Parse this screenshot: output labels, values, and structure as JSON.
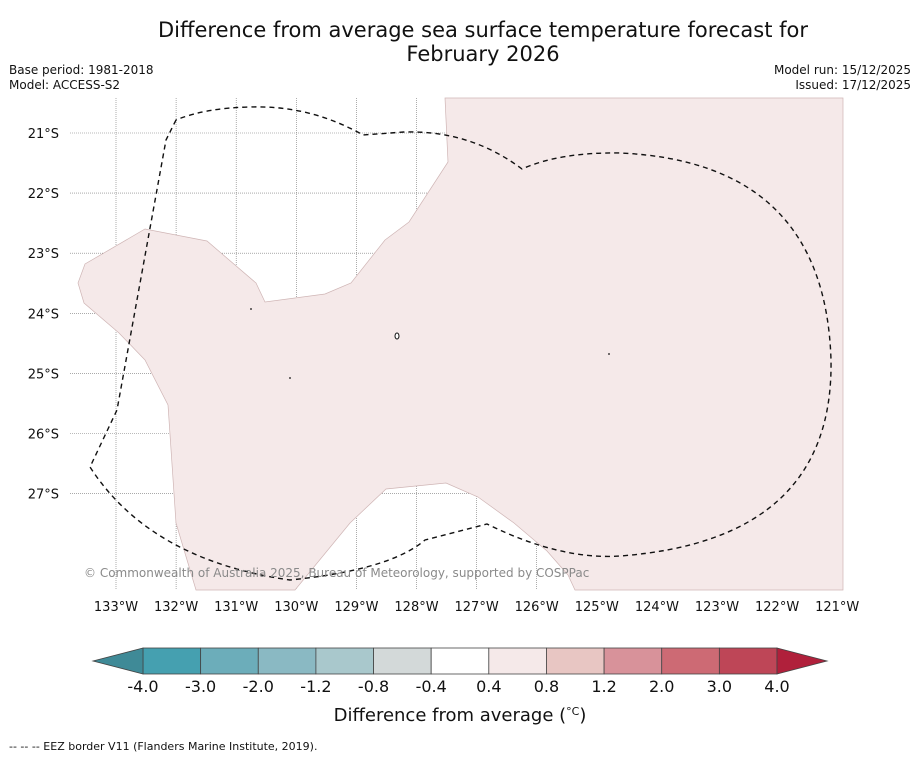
{
  "title_line1": "Difference from average sea surface temperature forecast for",
  "title_line2": "February 2026",
  "meta_left": {
    "base_period": "Base period: 1981-2018",
    "model": "Model: ACCESS-S2"
  },
  "meta_right": {
    "model_run": "Model run: 15/12/2025",
    "issued": "Issued: 17/12/2025"
  },
  "map": {
    "lon_range": [
      -133.6,
      -120.9
    ],
    "lat_range": [
      -28.6,
      -20.4
    ],
    "lat_ticks": [
      {
        "value": -21,
        "label": "21°S"
      },
      {
        "value": -22,
        "label": "22°S"
      },
      {
        "value": -23,
        "label": "23°S"
      },
      {
        "value": -24,
        "label": "24°S"
      },
      {
        "value": -25,
        "label": "25°S"
      },
      {
        "value": -26,
        "label": "26°S"
      },
      {
        "value": -27,
        "label": "27°S"
      }
    ],
    "lon_ticks": [
      {
        "value": -133,
        "label": "133°W"
      },
      {
        "value": -132,
        "label": "132°W"
      },
      {
        "value": -131,
        "label": "131°W"
      },
      {
        "value": -130,
        "label": "130°W"
      },
      {
        "value": -129,
        "label": "129°W"
      },
      {
        "value": -128,
        "label": "128°W"
      },
      {
        "value": -127,
        "label": "127°W"
      },
      {
        "value": -126,
        "label": "126°W"
      },
      {
        "value": -125,
        "label": "125°W"
      },
      {
        "value": -124,
        "label": "124°W"
      },
      {
        "value": -123,
        "label": "123°W"
      },
      {
        "value": -122,
        "label": "122°W"
      },
      {
        "value": -121,
        "label": "121°W"
      }
    ],
    "anomaly_fill_color": "#f5e9e9",
    "anomaly_category": "0.4 to 0.8",
    "copyright": "© Commonwealth of Australia 2025, Bureau of Meteorology, supported by COSPPac"
  },
  "colorbar": {
    "boundaries": [
      "-4.0",
      "-3.0",
      "-2.0",
      "-1.2",
      "-0.8",
      "-0.4",
      "0.4",
      "0.8",
      "1.2",
      "2.0",
      "3.0",
      "4.0"
    ],
    "colors": [
      "#45a0b0",
      "#6cadba",
      "#8ab9c3",
      "#a9c8cc",
      "#d3d9d9",
      "#ffffff",
      "#f5e9e9",
      "#e8c6c3",
      "#d8929a",
      "#cd6a74",
      "#be4657"
    ],
    "under_color": "#3f8a97",
    "over_color": "#b0203b",
    "label": "Difference from average (",
    "label_symbol": "°C",
    "label_close": ")"
  },
  "footnote": "--  --  -- EEZ border V11 (Flanders Marine Institute, 2019)."
}
